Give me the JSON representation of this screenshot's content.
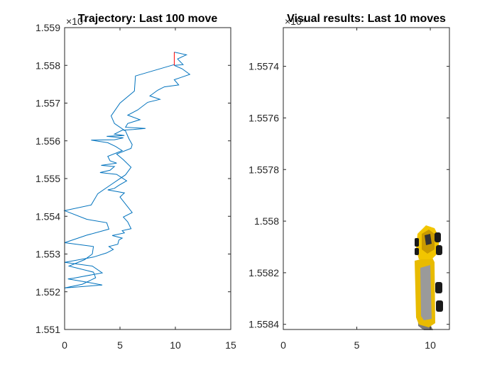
{
  "colors": {
    "trajectory": "#0072BD",
    "heading": "#FF0000",
    "axis": "#262626",
    "truck_body": "#F2C500",
    "truck_shadow": "#7A7A7A",
    "tire": "#1A1A1A"
  },
  "chart_data": [
    {
      "type": "line",
      "title": "Trajectory: Last 100 move",
      "xlabel": "",
      "ylabel": "",
      "xlim": [
        0,
        15
      ],
      "ylim": [
        15510,
        15590
      ],
      "y_exponent_label": "×10⁴",
      "xticks": [
        "0",
        "5",
        "10",
        "15"
      ],
      "xtick_values": [
        0,
        5,
        10,
        15
      ],
      "yticks": [
        "1.551",
        "1.552",
        "1.553",
        "1.554",
        "1.555",
        "1.556",
        "1.557",
        "1.558",
        "1.559"
      ],
      "ytick_values": [
        15510,
        15520,
        15530,
        15540,
        15550,
        15560,
        15570,
        15580,
        15590
      ],
      "grid": false,
      "series": [
        {
          "x": [
            9.9,
            11.0,
            10.2,
            10.7,
            9.9,
            10.6,
            11.3,
            10.5,
            9.9,
            10.3,
            9.0,
            8.4,
            7.7,
            8.6,
            7.5,
            6.6,
            5.7,
            6.8,
            5.7,
            5.5,
            7.3,
            6.2,
            5.2,
            4.5,
            5.4,
            4.6,
            3.8,
            5.3,
            4.5,
            2.4,
            3.9,
            4.6,
            5.2,
            3.9,
            4.1,
            4.7,
            3.3,
            4.5,
            4.1,
            3.2,
            4.7,
            5.6,
            4.9,
            4.5,
            3.9,
            5.4,
            5.0,
            6.1,
            5.3,
            5.7,
            6.0,
            5.2,
            5.4,
            4.3,
            5.2,
            4.9,
            4.8,
            4.0,
            4.4,
            3.8,
            2.6,
            0.0,
            2.5,
            3.4,
            0.8,
            0.3,
            2.3,
            3.4,
            0.0,
            1.6,
            2.8,
            2.6,
            0.4,
            1.8,
            2.5,
            2.6,
            0.0,
            2.0,
            4.0,
            3.8,
            2.0,
            0.0,
            2.4,
            3.0,
            4.0,
            5.5,
            6.0,
            5.3,
            4.7,
            6.0,
            6.1,
            5.8,
            5.5,
            4.5,
            4.2,
            5.0,
            6.3,
            6.4,
            9.9,
            9.9
          ],
          "y": [
            15583.5,
            15582.8,
            15581.7,
            15580.2,
            15580.0,
            15579.1,
            15577.6,
            15576.8,
            15576.2,
            15574.8,
            15574.3,
            15573.4,
            15571.9,
            15571.0,
            15570.2,
            15568.2,
            15566.8,
            15565.6,
            15564.6,
            15563.6,
            15563.3,
            15563.0,
            15562.8,
            15561.8,
            15561.4,
            15561.3,
            15561.2,
            15560.8,
            15560.3,
            15560.2,
            15559.5,
            15558.5,
            15557.4,
            15555.9,
            15554.7,
            15554.1,
            15553.5,
            15553.2,
            15552.2,
            15551.6,
            15551.1,
            15549.4,
            15548.2,
            15547.4,
            15547.0,
            15546.2,
            15545.1,
            15541.0,
            15539.8,
            15538.5,
            15536.7,
            15536.2,
            15535.6,
            15534.9,
            15534.2,
            15533.7,
            15532.6,
            15532.0,
            15531.2,
            15530.3,
            15529.2,
            15527.8,
            15526.8,
            15525.0,
            15523.6,
            15523.4,
            15522.4,
            15521.8,
            15521.0,
            15522.0,
            15523.7,
            15525.2,
            15526.8,
            15528.5,
            15530.0,
            15532.0,
            15533.0,
            15535.0,
            15536.6,
            15538.3,
            15539.2,
            15541.5,
            15543.0,
            15546.0,
            15548.0,
            15551.0,
            15553.0,
            15555.0,
            15556.5,
            15558.0,
            15559.0,
            15560.6,
            15562.6,
            15564.6,
            15566.6,
            15570.0,
            15573.2,
            15577.2,
            15580.2,
            15580.2
          ]
        }
      ]
    },
    {
      "type": "image",
      "title": "Visual results: Last 10 moves",
      "xlabel": "",
      "ylabel": "",
      "xlim": [
        0,
        11.3
      ],
      "ylim_reversed": [
        15572.5,
        15584.2
      ],
      "y_exponent_label": "×10⁴",
      "xticks": [
        "0",
        "5",
        "10"
      ],
      "xtick_values": [
        0,
        5,
        10
      ],
      "yticks": [
        "1.5574",
        "1.5576",
        "1.5578",
        "1.558",
        "1.5582",
        "1.5584"
      ],
      "ytick_values": [
        15574,
        15576,
        15578,
        15580,
        15582,
        15584
      ],
      "grid": false,
      "image_content": "yellow-dump-truck"
    }
  ]
}
